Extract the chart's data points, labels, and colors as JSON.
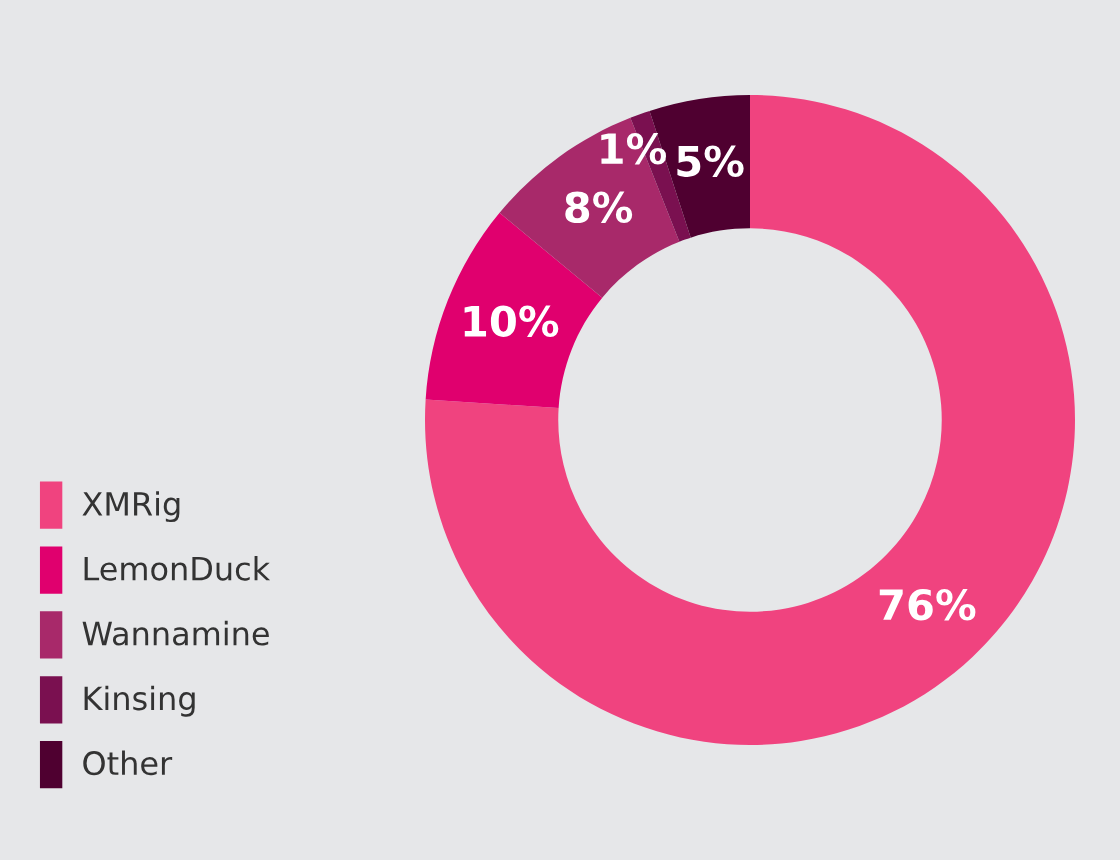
{
  "chart_data": {
    "type": "donut",
    "categories": [
      "XMRig",
      "LemonDuck",
      "Wannamine",
      "Kinsing",
      "Other"
    ],
    "values": [
      76,
      10,
      8,
      1,
      5
    ],
    "colors": [
      "#f0437f",
      "#e0006e",
      "#a8296a",
      "#7a1050",
      "#4f0030"
    ],
    "value_labels": [
      "76%",
      "10%",
      "8%",
      "1%",
      "5%"
    ],
    "legend": "left"
  }
}
